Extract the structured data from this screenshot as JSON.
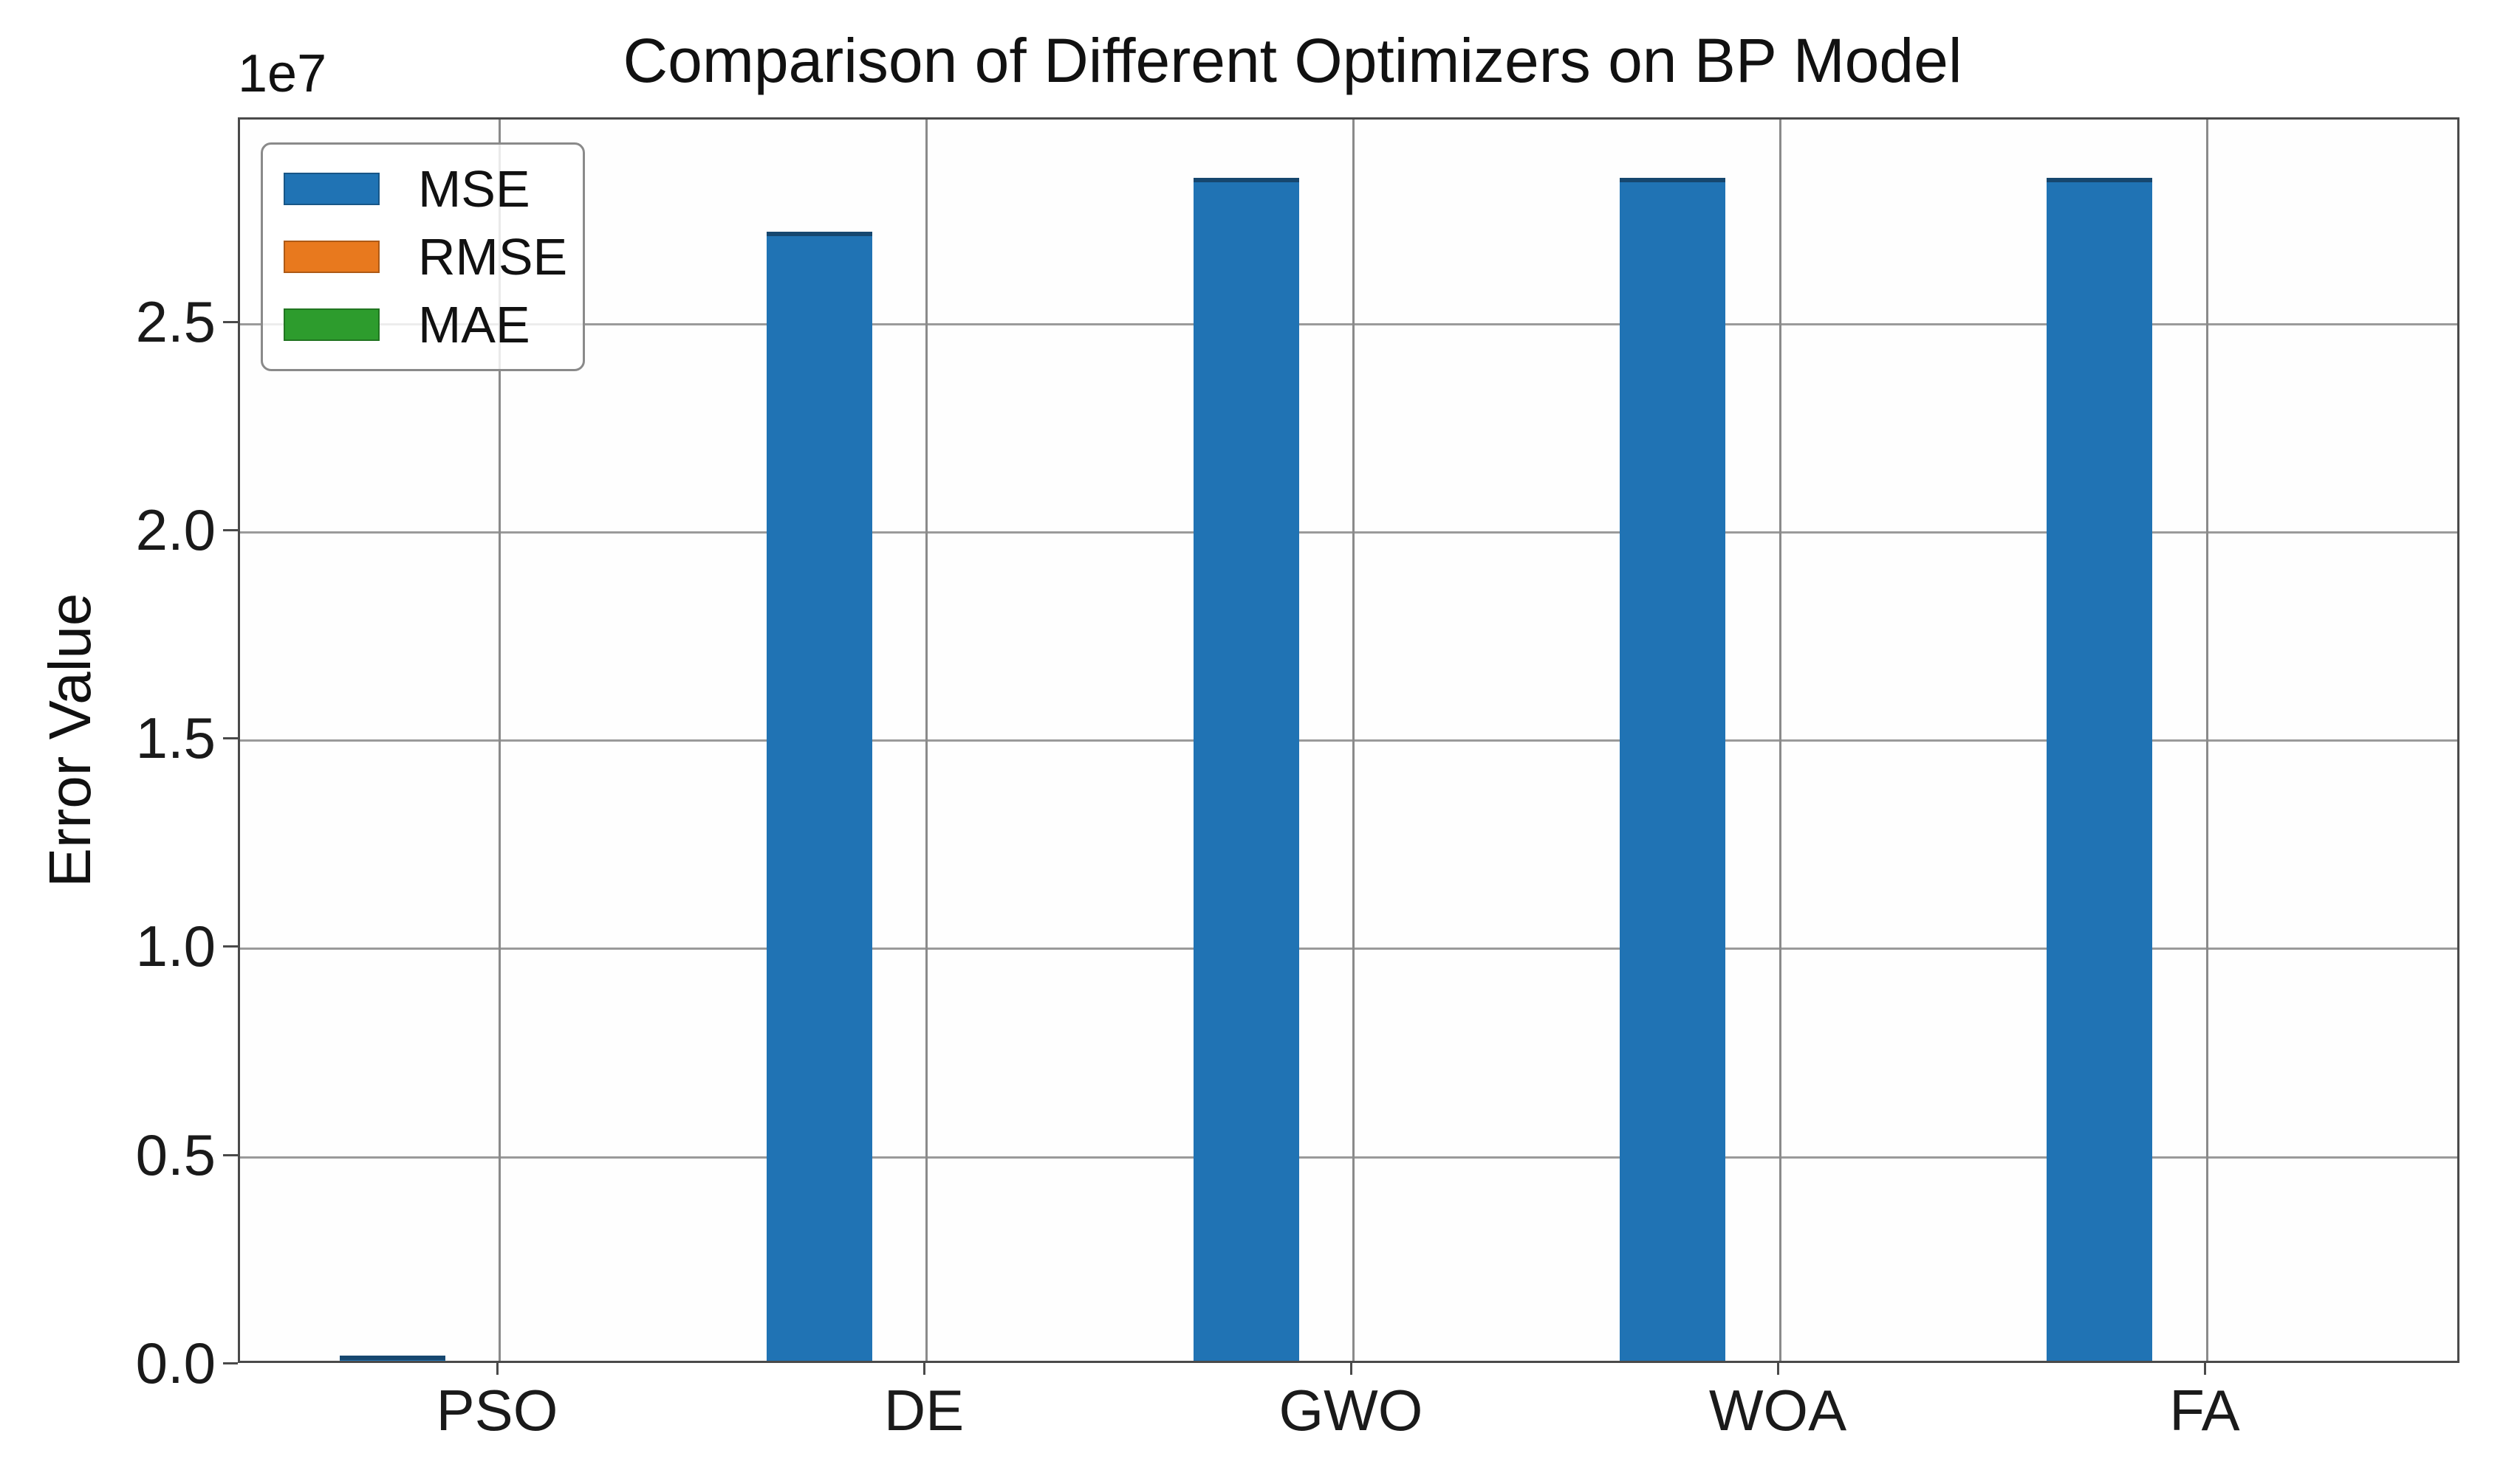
{
  "chart_data": {
    "type": "bar",
    "title": "Comparison of Different Optimizers on BP Model",
    "xlabel": "",
    "ylabel": "Error Value",
    "offset_text": "1e7",
    "categories": [
      "PSO",
      "DE",
      "GWO",
      "WOA",
      "FA"
    ],
    "series": [
      {
        "name": "MSE",
        "color": "#2073b4",
        "values": [
          130000,
          27100000,
          28400000,
          28400000,
          28400000
        ]
      },
      {
        "name": "RMSE",
        "color": "#e8791e",
        "values": [
          0,
          0,
          0,
          0,
          0
        ]
      },
      {
        "name": "MAE",
        "color": "#2d9c2d",
        "values": [
          0,
          0,
          0,
          0,
          0
        ]
      }
    ],
    "ylim": [
      0,
      29900000
    ],
    "yticks": {
      "values": [
        0,
        5000000,
        10000000,
        15000000,
        20000000,
        25000000
      ],
      "labels": [
        "0.0",
        "0.5",
        "1.0",
        "1.5",
        "2.0",
        "2.5"
      ]
    },
    "grid": true,
    "legend_position": "upper left",
    "colors": {
      "bar_blue": "#2073b4",
      "bar_orange": "#e8791e",
      "bar_green": "#2d9c2d",
      "gridline": "#9a9a9a",
      "spine": "#4a4a4a",
      "text": "#111111"
    }
  }
}
